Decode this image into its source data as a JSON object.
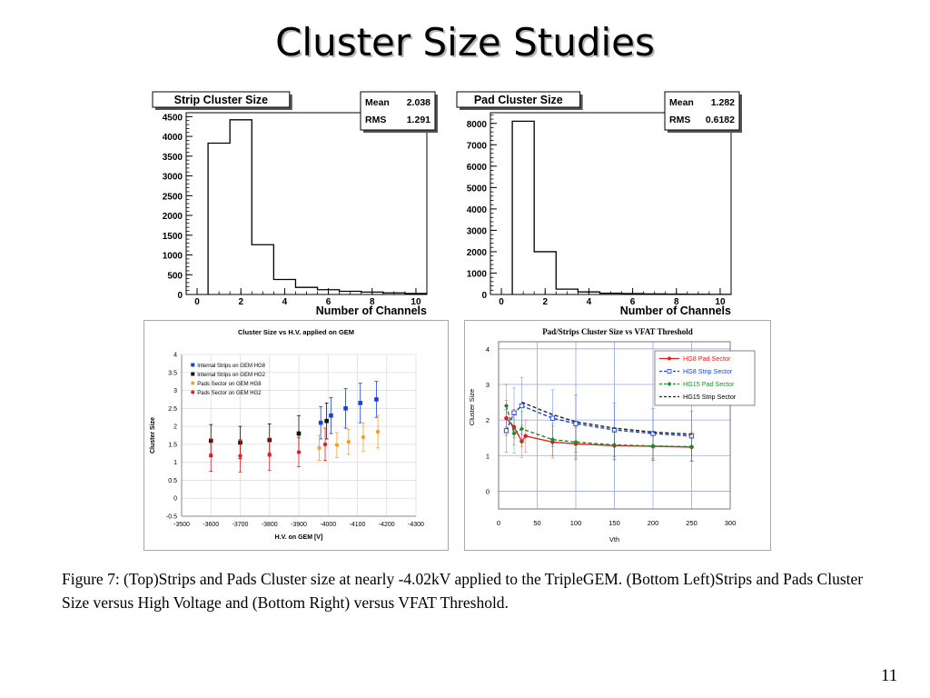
{
  "slide": {
    "title": "Cluster Size Studies",
    "caption": "Figure 7: (Top)Strips and Pads Cluster size at nearly -4.02kV applied to the TripleGEM. (Bottom Left)Strips and Pads Cluster Size versus High Voltage and (Bottom Right) versus VFAT Threshold.",
    "page_number": "11"
  },
  "colors": {
    "red": "#e02020",
    "black": "#111111",
    "blue": "#1a3fd6",
    "orange": "#f5a020",
    "green": "#1a8a2a",
    "grid": "#dddddd",
    "plot_bg": "#ffffff"
  },
  "chart_data": [
    {
      "type": "bar",
      "title": "Strip Cluster Size",
      "stats": [
        {
          "label": "Mean",
          "value": "2.038"
        },
        {
          "label": "RMS",
          "value": "1.291"
        }
      ],
      "xlabel": "Number of Channels",
      "ylabel": "",
      "xlim": [
        -0.5,
        10.5
      ],
      "ylim": [
        0,
        4600
      ],
      "xticks": [
        0,
        2,
        4,
        6,
        8,
        10
      ],
      "yticks": [
        0,
        500,
        1000,
        1500,
        2000,
        2500,
        3000,
        3500,
        4000,
        4500
      ],
      "bins": [
        {
          "x0": 0.5,
          "x1": 1.5,
          "value": 3830
        },
        {
          "x0": 1.5,
          "x1": 2.5,
          "value": 4420
        },
        {
          "x0": 2.5,
          "x1": 3.5,
          "value": 1260
        },
        {
          "x0": 3.5,
          "x1": 4.5,
          "value": 380
        },
        {
          "x0": 4.5,
          "x1": 5.5,
          "value": 180
        },
        {
          "x0": 5.5,
          "x1": 6.5,
          "value": 120
        },
        {
          "x0": 6.5,
          "x1": 7.5,
          "value": 80
        },
        {
          "x0": 7.5,
          "x1": 8.5,
          "value": 60
        },
        {
          "x0": 8.5,
          "x1": 9.5,
          "value": 40
        },
        {
          "x0": 9.5,
          "x1": 10.5,
          "value": 25
        }
      ]
    },
    {
      "type": "bar",
      "title": "Pad Cluster Size",
      "stats": [
        {
          "label": "Mean",
          "value": "1.282"
        },
        {
          "label": "RMS",
          "value": "0.6182"
        }
      ],
      "xlabel": "Number of Channels",
      "ylabel": "",
      "xlim": [
        -0.5,
        10.5
      ],
      "ylim": [
        0,
        8500
      ],
      "xticks": [
        0,
        2,
        4,
        6,
        8,
        10
      ],
      "yticks": [
        0,
        1000,
        2000,
        3000,
        4000,
        5000,
        6000,
        7000,
        8000
      ],
      "bins": [
        {
          "x0": 0.5,
          "x1": 1.5,
          "value": 8100
        },
        {
          "x0": 1.5,
          "x1": 2.5,
          "value": 2000
        },
        {
          "x0": 2.5,
          "x1": 3.5,
          "value": 250
        },
        {
          "x0": 3.5,
          "x1": 4.5,
          "value": 120
        },
        {
          "x0": 4.5,
          "x1": 5.5,
          "value": 60
        },
        {
          "x0": 5.5,
          "x1": 6.5,
          "value": 40
        },
        {
          "x0": 6.5,
          "x1": 7.5,
          "value": 25
        },
        {
          "x0": 7.5,
          "x1": 8.5,
          "value": 15
        },
        {
          "x0": 8.5,
          "x1": 9.5,
          "value": 10
        },
        {
          "x0": 9.5,
          "x1": 10.5,
          "value": 5
        }
      ]
    },
    {
      "type": "scatter",
      "title": "Cluster Size vs H.V. applied on GEM",
      "xlabel": "H.V. on GEM [V]",
      "ylabel": "Cluster Size",
      "xlim": [
        -3500,
        -4300
      ],
      "ylim": [
        -0.5,
        4
      ],
      "xticks": [
        -3500,
        -3600,
        -3700,
        -3800,
        -3900,
        -4000,
        -4100,
        -4200,
        -4300
      ],
      "yticks": [
        -0.5,
        0,
        0.5,
        1,
        1.5,
        2,
        2.5,
        3,
        3.5,
        4
      ],
      "grid": true,
      "legend": "top-left",
      "series": [
        {
          "name": "Internal Strips on GEM HG8",
          "color": "#1a3fd6",
          "points": [
            {
              "x": -3975,
              "y": 2.1,
              "err": 0.45
            },
            {
              "x": -4010,
              "y": 2.3,
              "err": 0.5
            },
            {
              "x": -4060,
              "y": 2.5,
              "err": 0.55
            },
            {
              "x": -4110,
              "y": 2.65,
              "err": 0.55
            },
            {
              "x": -4165,
              "y": 2.75,
              "err": 0.5
            }
          ]
        },
        {
          "name": "Internal Strips on GEM HG2",
          "color": "#111111",
          "points": [
            {
              "x": -3600,
              "y": 1.6,
              "err": 0.45
            },
            {
              "x": -3700,
              "y": 1.55,
              "err": 0.45
            },
            {
              "x": -3800,
              "y": 1.62,
              "err": 0.45
            },
            {
              "x": -3900,
              "y": 1.8,
              "err": 0.5
            },
            {
              "x": -3995,
              "y": 2.15,
              "err": 0.5
            }
          ]
        },
        {
          "name": "Pads Sector on GEM HG8",
          "color": "#f5a020",
          "points": [
            {
              "x": -3970,
              "y": 1.4,
              "err": 0.35
            },
            {
              "x": -4030,
              "y": 1.48,
              "err": 0.35
            },
            {
              "x": -4070,
              "y": 1.57,
              "err": 0.35
            },
            {
              "x": -4120,
              "y": 1.7,
              "err": 0.4
            },
            {
              "x": -4170,
              "y": 1.85,
              "err": 0.45
            }
          ]
        },
        {
          "name": "Pads Sector on GEM HG2",
          "color": "#e02020",
          "points": [
            {
              "x": -3600,
              "y": 1.2,
              "err": 0.45
            },
            {
              "x": -3700,
              "y": 1.18,
              "err": 0.45
            },
            {
              "x": -3800,
              "y": 1.22,
              "err": 0.45
            },
            {
              "x": -3900,
              "y": 1.28,
              "err": 0.4
            },
            {
              "x": -3990,
              "y": 1.5,
              "err": 0.45
            }
          ]
        }
      ]
    },
    {
      "type": "line",
      "title": "Pad/Strips Cluster Size vs VFAT Threshold",
      "xlabel": "Vth",
      "ylabel": "Cluster Size",
      "xlim": [
        0,
        300
      ],
      "ylim": [
        -0.5,
        4.2
      ],
      "xticks": [
        0,
        50,
        100,
        150,
        200,
        250,
        300
      ],
      "yticks": [
        0,
        1,
        2,
        3,
        4
      ],
      "grid": true,
      "legend": "top-right",
      "series": [
        {
          "name": "HG8 Pad Sector",
          "color": "#e02020",
          "style": "solid",
          "marker": "circle",
          "points": [
            {
              "x": 10,
              "y": 2.05,
              "err": 0.5
            },
            {
              "x": 20,
              "y": 1.8,
              "err": 0.5
            },
            {
              "x": 30,
              "y": 1.4,
              "err": 0.45
            },
            {
              "x": 35,
              "y": 1.55,
              "err": 0.45
            },
            {
              "x": 70,
              "y": 1.38,
              "err": 0.45
            },
            {
              "x": 100,
              "y": 1.33,
              "err": 0.45
            },
            {
              "x": 150,
              "y": 1.28,
              "err": 0.4
            },
            {
              "x": 200,
              "y": 1.26,
              "err": 0.4
            },
            {
              "x": 250,
              "y": 1.24,
              "err": 0.4
            }
          ]
        },
        {
          "name": "HG8 Strip Sector",
          "color": "#1a3fd6",
          "style": "dashed",
          "marker": "square",
          "points": [
            {
              "x": 10,
              "y": 1.7,
              "err": 0.6
            },
            {
              "x": 20,
              "y": 2.2,
              "err": 0.7
            },
            {
              "x": 30,
              "y": 2.4,
              "err": 0.8
            },
            {
              "x": 70,
              "y": 2.05,
              "err": 0.8
            },
            {
              "x": 100,
              "y": 1.9,
              "err": 0.8
            },
            {
              "x": 150,
              "y": 1.72,
              "err": 0.75
            },
            {
              "x": 200,
              "y": 1.62,
              "err": 0.7
            },
            {
              "x": 250,
              "y": 1.55,
              "err": 0.7
            }
          ]
        },
        {
          "name": "HG15 Pad Sector",
          "color": "#1a8a2a",
          "style": "dashed",
          "marker": "diamond",
          "points": [
            {
              "x": 10,
              "y": 2.4,
              "err": 0.6
            },
            {
              "x": 20,
              "y": 1.62,
              "err": 0.55
            },
            {
              "x": 30,
              "y": 1.75,
              "err": 0.5
            },
            {
              "x": 70,
              "y": 1.45,
              "err": 0.45
            },
            {
              "x": 100,
              "y": 1.38,
              "err": 0.45
            },
            {
              "x": 150,
              "y": 1.3,
              "err": 0.4
            },
            {
              "x": 200,
              "y": 1.27,
              "err": 0.4
            },
            {
              "x": 250,
              "y": 1.25,
              "err": 0.4
            }
          ]
        },
        {
          "name": "HG15 Strip Sector",
          "color": "#222222",
          "style": "dashed",
          "marker": "none",
          "points": [
            {
              "x": 30,
              "y": 2.5,
              "err": 0
            },
            {
              "x": 70,
              "y": 2.15,
              "err": 0
            },
            {
              "x": 100,
              "y": 1.95,
              "err": 0
            },
            {
              "x": 150,
              "y": 1.77,
              "err": 0
            },
            {
              "x": 200,
              "y": 1.66,
              "err": 0
            },
            {
              "x": 250,
              "y": 1.6,
              "err": 0
            }
          ]
        }
      ]
    }
  ]
}
